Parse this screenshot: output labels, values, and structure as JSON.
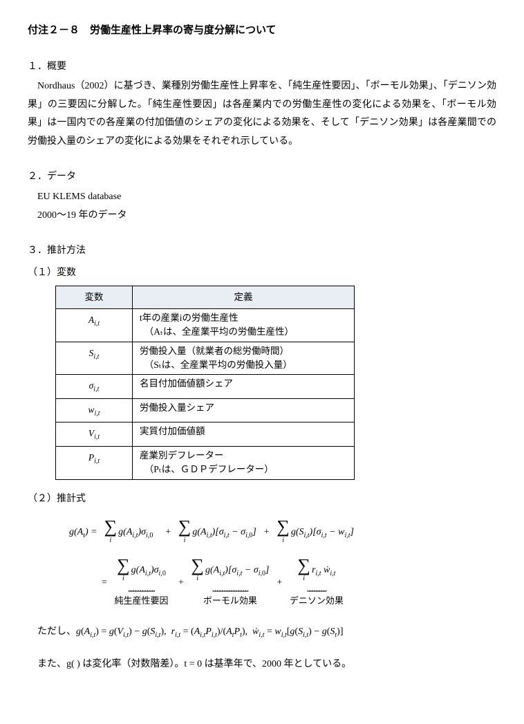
{
  "title": "付注２－８　労働生産性上昇率の寄与度分解について",
  "sections": {
    "s1_heading": "１．概要",
    "s1_para": "Nordhaus（2002）に基づき、業種別労働生産性上昇率を、「純生産性要因」、「ボーモル効果」、「デニソン効果」の三要因に分解した。「純生産性要因」は各産業内での労働生産性の変化による効果を、「ボーモル効果」は一国内での各産業の付加価値のシェアの変化による効果を、そして「デニソン効果」は各産業間での労働投入量のシェアの変化による効果をそれぞれ示している。",
    "s2_heading": "２．データ",
    "s2_line1": "EU KLEMS database",
    "s2_line2": "2000～19 年のデータ",
    "s3_heading": "３．推計方法",
    "s3_sub1": "（１）変数"
  },
  "table": {
    "header_var": "変数",
    "header_def": "定義",
    "rows": [
      {
        "var": "A",
        "sub": "i,t",
        "def_line1": "t年の産業iの労働生産性",
        "def_line2": "（Aₜは、全産業平均の労働生産性）"
      },
      {
        "var": "S",
        "sub": "i,t",
        "def_line1": "労働投入量（就業者の総労働時間）",
        "def_line2": "（Sₜは、全産業平均の労働投入量）"
      },
      {
        "var": "σ",
        "sub": "i,t",
        "def_line1": "名目付加価値額シェア",
        "def_line2": ""
      },
      {
        "var": "w",
        "sub": "i,t",
        "def_line1": "労働投入量シェア",
        "def_line2": ""
      },
      {
        "var": "V",
        "sub": "i,t",
        "def_line1": "実質付加価値額",
        "def_line2": ""
      },
      {
        "var": "P",
        "sub": "i,t",
        "def_line1": "産業別デフレーター",
        "def_line2": "（Pₜは、ＧＤＰデフレーター）"
      }
    ]
  },
  "s3_sub2": "（２）推計式",
  "formula": {
    "lhs": "g(Aₜ) =",
    "row1_term1": "g(A_{i,t})σ_{i,0}",
    "row1_plus1": "+",
    "row1_term2": "g(A_{i,t})[σ_{i,t} − σ_{i,0}]",
    "row1_plus2": "+",
    "row1_term3": "g(S_{i,t})[σ_{i,t} − w_{i,t}]",
    "eq2": "=",
    "row2_term1": "g(A_{i,t})σ_{i,0}",
    "row2_plus1": "+",
    "row2_term2": "g(A_{i,t})[σ_{i,t} − σ_{i,0}]",
    "row2_plus2": "+",
    "row2_term3": "r_{i,t} ẇ_{i,t}",
    "label1": "純生産性要因",
    "label2": "ボーモル効果",
    "label3": "デニソン効果"
  },
  "footer": {
    "line1_prefix": "ただし、",
    "line1_math": "g(A_{i,t}) = g(V_{i,t}) − g(S_{i,t}),　r_{i,t} = (A_{i,t}P_{i,t})/(AₜPₜ),　ẇ_{i,t} = w_{i,t}[g(S_{i,t}) − g(Sₜ)]",
    "line2": "また、g( ) は変化率（対数階差）。t = 0 は基準年で、2000 年としている。"
  }
}
